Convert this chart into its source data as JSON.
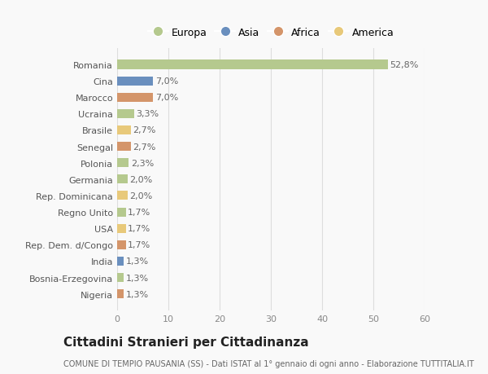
{
  "categories": [
    "Romania",
    "Cina",
    "Marocco",
    "Ucraina",
    "Brasile",
    "Senegal",
    "Polonia",
    "Germania",
    "Rep. Dominicana",
    "Regno Unito",
    "USA",
    "Rep. Dem. d/Congo",
    "India",
    "Bosnia-Erzegovina",
    "Nigeria"
  ],
  "values": [
    52.8,
    7.0,
    7.0,
    3.3,
    2.7,
    2.7,
    2.3,
    2.0,
    2.0,
    1.7,
    1.7,
    1.7,
    1.3,
    1.3,
    1.3
  ],
  "labels": [
    "52,8%",
    "7,0%",
    "7,0%",
    "3,3%",
    "2,7%",
    "2,7%",
    "2,3%",
    "2,0%",
    "2,0%",
    "1,7%",
    "1,7%",
    "1,7%",
    "1,3%",
    "1,3%",
    "1,3%"
  ],
  "colors": [
    "#b5c98e",
    "#6a8fbe",
    "#d4956a",
    "#b5c98e",
    "#e8c97a",
    "#d4956a",
    "#b5c98e",
    "#b5c98e",
    "#e8c97a",
    "#b5c98e",
    "#e8c97a",
    "#d4956a",
    "#6a8fbe",
    "#b5c98e",
    "#d4956a"
  ],
  "legend_labels": [
    "Europa",
    "Asia",
    "Africa",
    "America"
  ],
  "legend_colors": [
    "#b5c98e",
    "#6a8fbe",
    "#d4956a",
    "#e8c97a"
  ],
  "title": "Cittadini Stranieri per Cittadinanza",
  "subtitle": "COMUNE DI TEMPIO PAUSANIA (SS) - Dati ISTAT al 1° gennaio di ogni anno - Elaborazione TUTTITALIA.IT",
  "xlim": [
    0,
    60
  ],
  "xticks": [
    0,
    10,
    20,
    30,
    40,
    50,
    60
  ],
  "background_color": "#f9f9f9",
  "grid_color": "#dddddd",
  "bar_height": 0.55,
  "title_fontsize": 11,
  "subtitle_fontsize": 7,
  "tick_fontsize": 8,
  "label_fontsize": 8,
  "legend_fontsize": 9
}
